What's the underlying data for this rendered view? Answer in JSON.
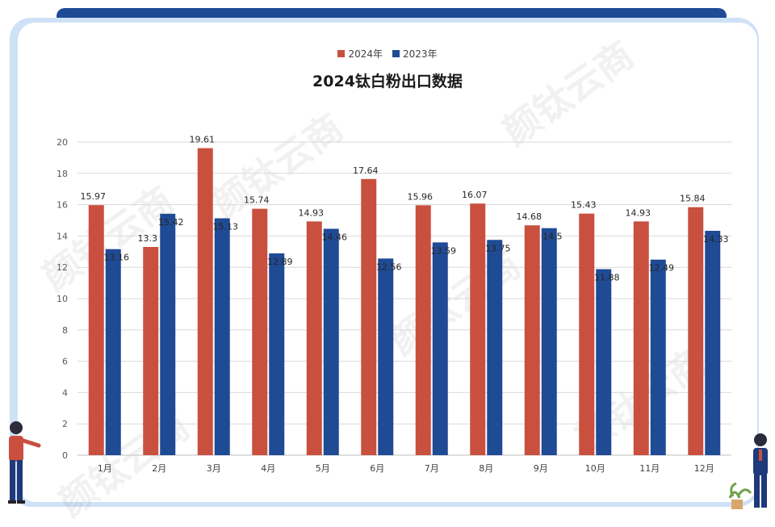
{
  "chart_data": {
    "type": "bar",
    "title": "2024钛白粉出口数据",
    "categories": [
      "1月",
      "2月",
      "3月",
      "4月",
      "5月",
      "6月",
      "7月",
      "8月",
      "9月",
      "10月",
      "11月",
      "12月"
    ],
    "series": [
      {
        "name": "2024年",
        "color": "#c9503f",
        "values": [
          15.97,
          13.3,
          19.61,
          15.74,
          14.93,
          17.64,
          15.96,
          16.07,
          14.68,
          15.43,
          14.93,
          15.84
        ],
        "labels": [
          "15.97",
          "13.3",
          "19.61",
          "15.74",
          "14.93",
          "17.64",
          "15.96",
          "16.07",
          "14.68",
          "15.43",
          "14.93",
          "15.84"
        ]
      },
      {
        "name": "2023年",
        "color": "#1f4a94",
        "values": [
          13.16,
          15.42,
          15.13,
          12.89,
          14.46,
          12.56,
          13.59,
          13.75,
          14.5,
          11.88,
          12.49,
          14.33
        ],
        "labels": [
          "13.16",
          "15.42",
          "15.13",
          "12.89",
          "14.46",
          "12.56",
          "13.59",
          "13.75",
          "14.5",
          "11.88",
          "12.49",
          "14.33"
        ]
      }
    ],
    "ylim": [
      0,
      20
    ],
    "yticks": [
      "0",
      "2",
      "4",
      "6",
      "8",
      "10",
      "12",
      "14",
      "16",
      "18",
      "20"
    ],
    "grid": true,
    "legend": "top-center",
    "xlabel": "",
    "ylabel": ""
  },
  "watermark": "颜钛云商"
}
